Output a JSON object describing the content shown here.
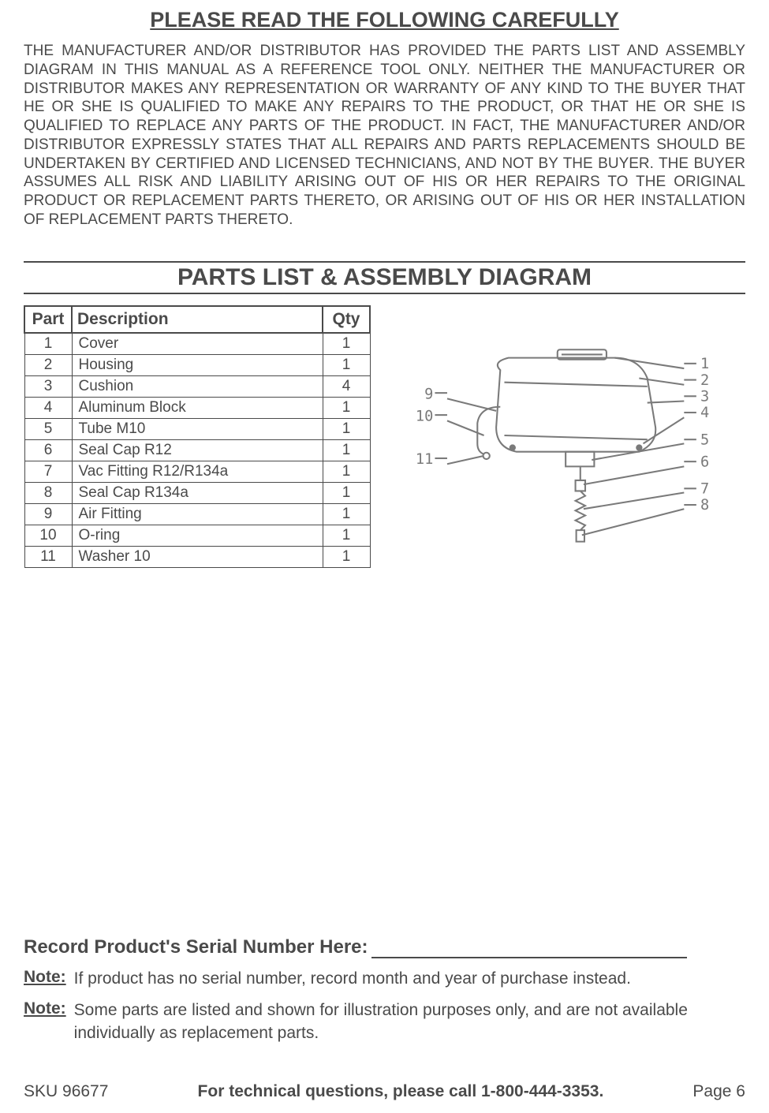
{
  "heading1": "PLEASE READ THE FOLLOWING CAREFULLY",
  "warranty_text": "THE MANUFACTURER AND/OR DISTRIBUTOR HAS PROVIDED THE PARTS LIST AND ASSEMBLY DIAGRAM IN THIS MANUAL AS A REFERENCE TOOL ONLY.  NEITHER THE MANUFACTURER OR DISTRIBUTOR MAKES ANY REPRESENTATION OR WARRANTY OF ANY KIND TO THE BUYER THAT HE OR SHE IS QUALIFIED TO MAKE ANY REPAIRS TO THE PRODUCT, OR THAT HE OR SHE IS QUALIFIED TO REPLACE ANY PARTS OF THE PRODUCT.  IN FACT, THE MANUFACTURER AND/OR DISTRIBUTOR EXPRESSLY STATES THAT ALL REPAIRS AND PARTS REPLACEMENTS SHOULD BE UNDERTAKEN BY CERTIFIED AND LICENSED TECHNICIANS, AND NOT BY THE BUYER.  THE BUYER ASSUMES ALL RISK AND LIABILITY ARISING OUT OF HIS OR HER REPAIRS TO THE ORIGINAL PRODUCT OR REPLACEMENT PARTS THERETO, OR ARISING OUT OF HIS OR HER INSTALLATION OF REPLACEMENT PARTS THERETO.",
  "section_banner": "PARTS LIST & ASSEMBLY DIAGRAM",
  "table": {
    "headers": {
      "part": "Part",
      "description": "Description",
      "qty": "Qty"
    },
    "rows": [
      {
        "part": "1",
        "description": "Cover",
        "qty": "1"
      },
      {
        "part": "2",
        "description": "Housing",
        "qty": "1"
      },
      {
        "part": "3",
        "description": "Cushion",
        "qty": "4"
      },
      {
        "part": "4",
        "description": "Aluminum Block",
        "qty": "1"
      },
      {
        "part": "5",
        "description": "Tube M10",
        "qty": "1"
      },
      {
        "part": "6",
        "description": "Seal Cap R12",
        "qty": "1"
      },
      {
        "part": "7",
        "description": "Vac Fitting R12/R134a",
        "qty": "1"
      },
      {
        "part": "8",
        "description": "Seal Cap R134a",
        "qty": "1"
      },
      {
        "part": "9",
        "description": "Air Fitting",
        "qty": "1"
      },
      {
        "part": "10",
        "description": "O-ring",
        "qty": "1"
      },
      {
        "part": "11",
        "description": "Washer 10",
        "qty": "1"
      }
    ]
  },
  "diagram": {
    "stroke": "#7a7a7a",
    "fill": "#ffffff",
    "label_font": "14px",
    "callouts_left": [
      "9",
      "10",
      "11"
    ],
    "callouts_right": [
      "1",
      "2",
      "3",
      "4",
      "5",
      "6",
      "7",
      "8"
    ]
  },
  "serial_heading": "Record Product's Serial Number Here:",
  "notes": [
    {
      "label": "Note:",
      "text": "If product has no serial number, record month and year of purchase instead."
    },
    {
      "label": "Note:",
      "text": "Some parts are listed and shown for illustration purposes only, and are not available individually as replacement parts."
    }
  ],
  "footer": {
    "left": "SKU 96677",
    "center": "For technical questions, please call 1-800-444-3353.",
    "right": "Page 6"
  }
}
